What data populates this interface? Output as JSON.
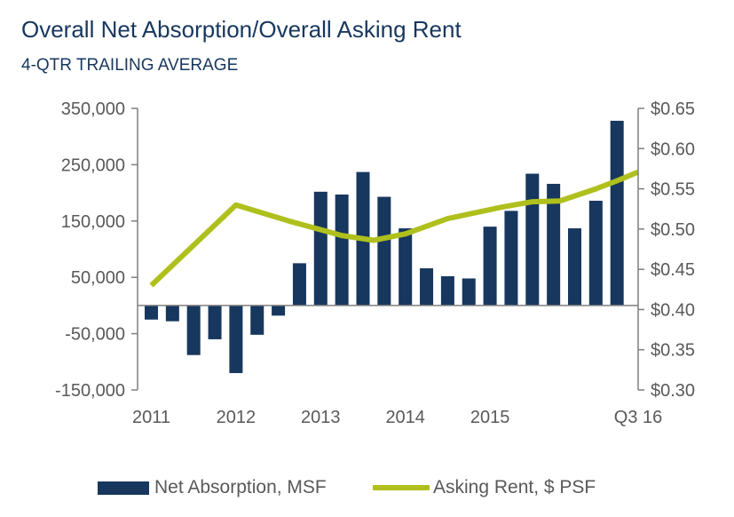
{
  "chart_data": {
    "type": "bar+line",
    "title": "Overall Net Absorption/Overall Asking Rent",
    "subtitle": "4-QTR TRAILING AVERAGE",
    "x_tick_labels": [
      "2011",
      "2012",
      "2013",
      "2014",
      "2015",
      "Q3 16"
    ],
    "y_left": {
      "ticks": [
        "350,000",
        "250,000",
        "150,000",
        "50,000",
        "-50,000",
        "-150,000"
      ],
      "tick_values": [
        350000,
        250000,
        150000,
        50000,
        -50000,
        -150000
      ],
      "ylim": [
        -150000,
        350000
      ]
    },
    "y_right": {
      "ticks": [
        "$0.65",
        "$0.60",
        "$0.55",
        "$0.50",
        "$0.45",
        "$0.40",
        "$0.35",
        "$0.30"
      ],
      "tick_values": [
        0.65,
        0.6,
        0.55,
        0.5,
        0.45,
        0.4,
        0.35,
        0.3
      ],
      "ylim": [
        0.3,
        0.65
      ]
    },
    "series": [
      {
        "name": "Net Absorption, MSF",
        "type": "bar",
        "axis": "left",
        "color": "#17375e",
        "values": [
          -25000,
          -28000,
          -88000,
          -60000,
          -120000,
          -52000,
          -18000,
          75000,
          202000,
          197000,
          237000,
          193000,
          137000,
          66000,
          52000,
          48000,
          140000,
          168000,
          234000,
          216000,
          137000,
          186000,
          328000
        ]
      },
      {
        "name": "Asking Rent, $ PSF",
        "type": "line",
        "axis": "right",
        "color": "#afc01d",
        "points": [
          {
            "q": 0,
            "v": 0.43
          },
          {
            "q": 4,
            "v": 0.53
          },
          {
            "q": 6.5,
            "v": 0.51
          },
          {
            "q": 9,
            "v": 0.492
          },
          {
            "q": 10.5,
            "v": 0.486
          },
          {
            "q": 12,
            "v": 0.494
          },
          {
            "q": 14,
            "v": 0.513
          },
          {
            "q": 16.5,
            "v": 0.527
          },
          {
            "q": 18,
            "v": 0.534
          },
          {
            "q": 19.3,
            "v": 0.535
          },
          {
            "q": 21,
            "v": 0.55
          },
          {
            "q": 22,
            "v": 0.56
          },
          {
            "q": 23,
            "v": 0.571
          }
        ]
      }
    ],
    "legend": [
      {
        "label": "Net Absorption, MSF",
        "marker": "bar",
        "color": "#17375e"
      },
      {
        "label": "Asking Rent, $ PSF",
        "marker": "line",
        "color": "#afc01d"
      }
    ],
    "colors": {
      "axis": "#7f7f7f",
      "text": "#595959",
      "title": "#17375e"
    }
  }
}
